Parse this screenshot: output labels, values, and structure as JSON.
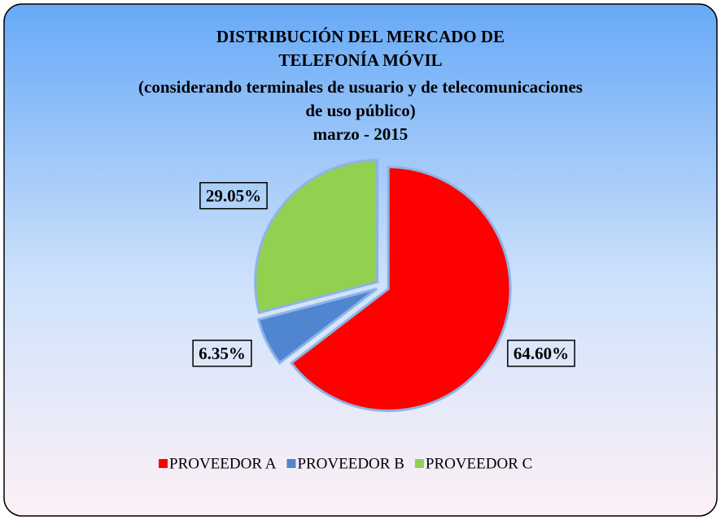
{
  "chart_data": {
    "type": "pie",
    "title": [
      "DISTRIBUCIÓN DEL MERCADO DE",
      "TELEFONÍA MÓVIL"
    ],
    "subtitle": [
      "(considerando terminales de usuario y de telecomunicaciones",
      "de uso público)",
      "marzo - 2015"
    ],
    "categories": [
      "PROVEEDOR A",
      "PROVEEDOR B",
      "PROVEEDOR C"
    ],
    "values": [
      64.6,
      6.35,
      29.05
    ],
    "value_labels": [
      "64.60%",
      "6.35%",
      "29.05%"
    ],
    "colors": [
      "#ff0000",
      "#4f86cf",
      "#92d050"
    ],
    "legend": "bottom"
  }
}
